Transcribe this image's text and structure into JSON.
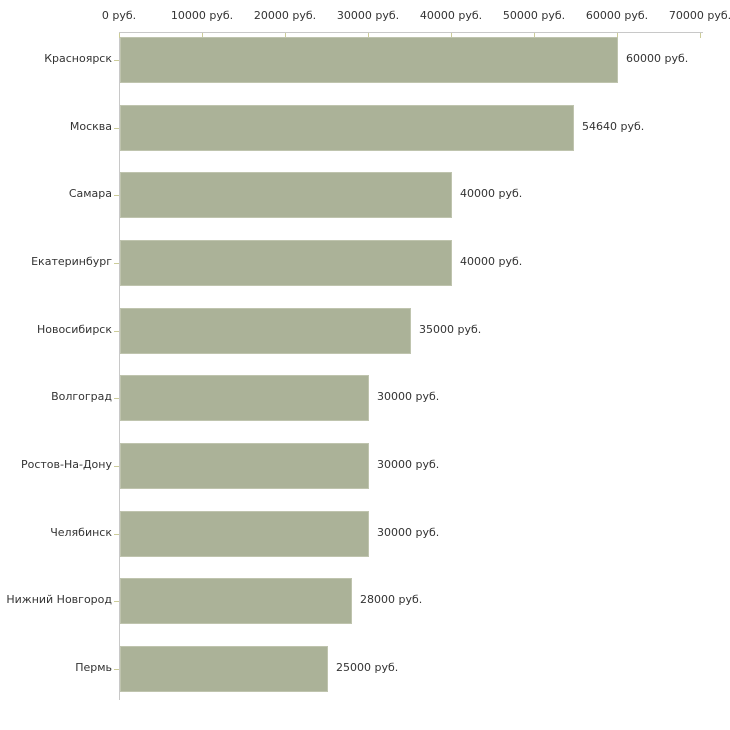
{
  "chart_data": {
    "type": "bar",
    "orientation": "horizontal",
    "title": "",
    "xlabel": "",
    "ylabel": "",
    "grid": false,
    "legend": false,
    "categories": [
      "Красноярск",
      "Москва",
      "Самара",
      "Екатеринбург",
      "Новосибирск",
      "Волгоград",
      "Ростов-На-Дону",
      "Челябинск",
      "Нижний Новгород",
      "Пермь"
    ],
    "values": [
      60000,
      54640,
      40000,
      40000,
      35000,
      30000,
      30000,
      30000,
      28000,
      25000
    ],
    "value_labels": [
      "60000 руб.",
      "54640 руб.",
      "40000 руб.",
      "40000 руб.",
      "35000 руб.",
      "30000 руб.",
      "30000 руб.",
      "30000 руб.",
      "28000 руб.",
      "25000 руб."
    ],
    "axis": {
      "position": "top",
      "min": 0,
      "max": 70000,
      "tick_interval": 10000,
      "tick_labels": [
        "0 руб.",
        "10000 руб.",
        "20000 руб.",
        "30000 руб.",
        "40000 руб.",
        "50000 руб.",
        "60000 руб.",
        "70000 руб."
      ]
    },
    "colors": {
      "bar_fill": "#abb298",
      "bar_outline": "#bfc4ae",
      "axis_line": "#c8c8c8",
      "tick_mark": "#cccc99",
      "text": "#333333",
      "background": "#ffffff"
    }
  }
}
